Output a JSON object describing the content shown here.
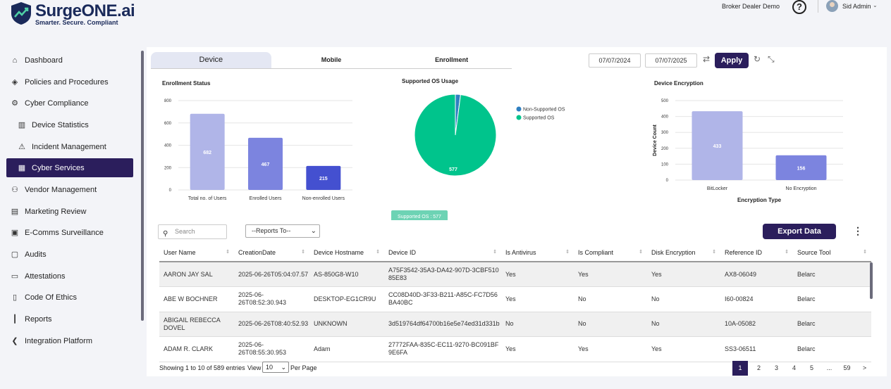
{
  "brand": {
    "name": "SurgeONE.ai",
    "tagline": "Smarter. Secure. Compliant"
  },
  "header": {
    "org": "Broker Dealer Demo",
    "help": "?",
    "user": "Sid Admin"
  },
  "sidebar": {
    "items": [
      {
        "label": "Dashboard",
        "icon": "home-icon"
      },
      {
        "label": "Policies and Procedures",
        "icon": "layers-icon"
      },
      {
        "label": "Cyber Compliance",
        "icon": "gear-icon"
      },
      {
        "label": "Device Statistics",
        "icon": "bar-chart-icon"
      },
      {
        "label": "Incident Management",
        "icon": "warning-icon"
      },
      {
        "label": "Cyber Services",
        "icon": "building-icon"
      },
      {
        "label": "Vendor Management",
        "icon": "users-icon"
      },
      {
        "label": "Marketing Review",
        "icon": "megaphone-icon"
      },
      {
        "label": "E-Comms Surveillance",
        "icon": "monitor-icon"
      },
      {
        "label": "Audits",
        "icon": "audit-icon"
      },
      {
        "label": "Attestations",
        "icon": "document-icon"
      },
      {
        "label": "Code Of Ethics",
        "icon": "code-icon"
      },
      {
        "label": "Reports",
        "icon": "reports-icon"
      },
      {
        "label": "Integration Platform",
        "icon": "integration-icon"
      }
    ]
  },
  "tabs": [
    "Device",
    "Mobile",
    "Enrollment"
  ],
  "filters": {
    "date_from": "07/07/2024",
    "date_to": "07/07/2025",
    "apply": "Apply"
  },
  "charts": {
    "enrollment_title": "Enrollment Status",
    "os_title": "Supported OS Usage",
    "encryption_title": "Device Encryption",
    "tooltip": "Supported OS : 577"
  },
  "chart_data": [
    {
      "type": "bar",
      "title": "Enrollment Status",
      "categories": [
        "Total no. of Users",
        "Enrolled Users",
        "Non-enrolled Users"
      ],
      "values": [
        682,
        467,
        215
      ],
      "yticks": [
        0,
        200,
        400,
        600,
        800
      ],
      "ylim": [
        0,
        800
      ],
      "colors": [
        "#b0b5e8",
        "#7c84df",
        "#4450d0"
      ]
    },
    {
      "type": "pie",
      "title": "Supported OS Usage",
      "labels": [
        "Non-Supported OS",
        "Supported OS"
      ],
      "values": [
        12,
        577
      ],
      "colors": [
        "#2f7fc1",
        "#00c48c"
      ],
      "legend": "right"
    },
    {
      "type": "bar",
      "title": "Device Encryption",
      "categories": [
        "BitLocker",
        "No Encryption"
      ],
      "values": [
        433,
        156
      ],
      "yticks": [
        0,
        100,
        200,
        300,
        400,
        500
      ],
      "ylim": [
        0,
        500
      ],
      "ylabel": "Device Count",
      "xlabel": "Encryption Type",
      "colors": [
        "#b0b5e8",
        "#7c84df"
      ]
    }
  ],
  "table": {
    "search_placeholder": "Search",
    "reports_select": "--Reports To--",
    "export": "Export Data",
    "more": "⋮",
    "columns": [
      "User Name",
      "CreationDate",
      "Device Hostname",
      "Device ID",
      "Is Antivirus",
      "Is Compliant",
      "Disk Encryption",
      "Reference ID",
      "Source Tool"
    ],
    "rows": [
      [
        "AARON JAY SAL",
        "2025-06-26T05:04:07.57",
        "AS-850G8-W10",
        "A75F3542-35A3-DA42-907D-3CBF51085E83",
        "Yes",
        "Yes",
        "Yes",
        "AX8-06049",
        "Belarc"
      ],
      [
        "ABE W BOCHNER",
        "2025-06-26T08:52:30.943",
        "DESKTOP-EG1CR9U",
        "CC08D40D-3F33-B211-A85C-FC7D56BA40BC",
        "Yes",
        "No",
        "No",
        "I60-00824",
        "Belarc"
      ],
      [
        "ABIGAIL REBECCA DOVEL",
        "2025-06-26T08:40:52.93",
        "UNKNOWN",
        "3d519764df64700b16e5e74ed31d331b",
        "No",
        "No",
        "No",
        "10A-05082",
        "Belarc"
      ],
      [
        "ADAM R. CLARK",
        "2025-06-26T08:55:30.953",
        "Adam",
        "27772FAA-835C-EC11-9270-BC091BF9E6FA",
        "Yes",
        "Yes",
        "Yes",
        "SS3-06511",
        "Belarc"
      ]
    ],
    "showing": "Showing 1 to 10 of 589 entries",
    "view": "View",
    "per_page_value": "10",
    "per_page": "Per Page",
    "pages": [
      "1",
      "2",
      "3",
      "4",
      "5",
      "...",
      "59",
      ">"
    ]
  }
}
